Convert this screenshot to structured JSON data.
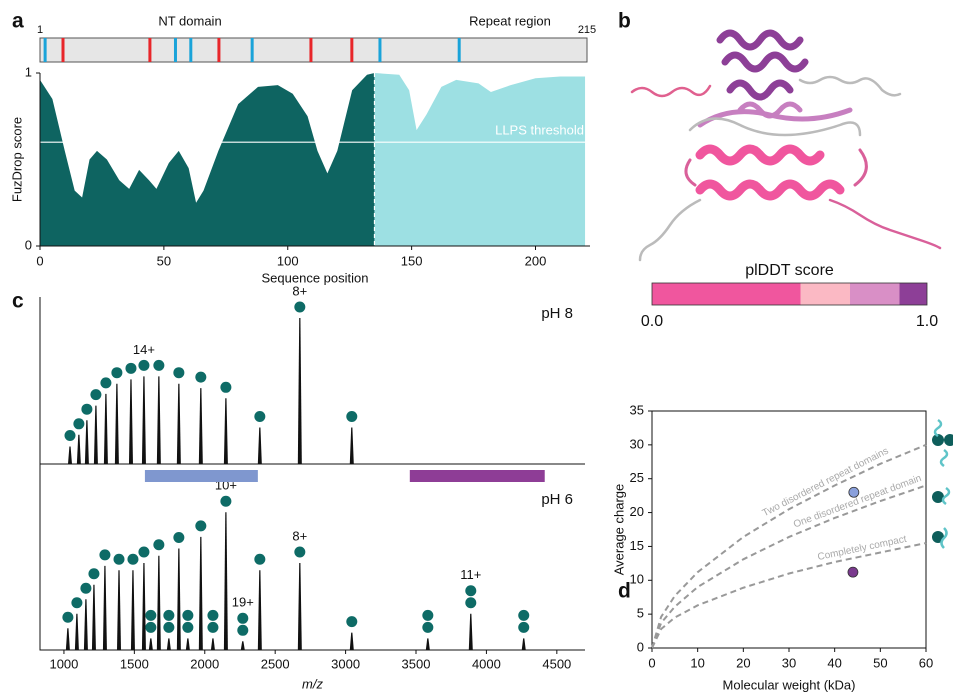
{
  "chart_data": [
    {
      "type": "area",
      "panel_label": "a",
      "domain_bar": {
        "start": 1,
        "end": 215,
        "regions": [
          "NT domain",
          "Repeat region"
        ],
        "sites": [
          {
            "x": 3,
            "color": "#1aa3d9"
          },
          {
            "x": 10,
            "color": "#e8262a"
          },
          {
            "x": 44,
            "color": "#e8262a"
          },
          {
            "x": 54,
            "color": "#1aa3d9"
          },
          {
            "x": 60,
            "color": "#1aa3d9"
          },
          {
            "x": 71,
            "color": "#e8262a"
          },
          {
            "x": 84,
            "color": "#1aa3d9"
          },
          {
            "x": 107,
            "color": "#e8262a"
          },
          {
            "x": 123,
            "color": "#e8262a"
          },
          {
            "x": 134,
            "color": "#1aa3d9"
          },
          {
            "x": 165,
            "color": "#1aa3d9"
          }
        ]
      },
      "xlabel": "Sequence position",
      "ylabel": "FuzDrop score",
      "xlim": [
        0,
        222
      ],
      "ylim": [
        0,
        1
      ],
      "xticks": [
        0,
        50,
        100,
        150,
        200
      ],
      "yticks": [
        0,
        1
      ],
      "series": [
        {
          "color": "#0e6461",
          "x": [
            0,
            5,
            10,
            14,
            17,
            20,
            23,
            27,
            32,
            36,
            40,
            44,
            47,
            52,
            56,
            60,
            63,
            66,
            72,
            80,
            88,
            96,
            102,
            108,
            112,
            116,
            120,
            126,
            132,
            135
          ],
          "values": [
            0.96,
            0.85,
            0.55,
            0.32,
            0.28,
            0.5,
            0.55,
            0.5,
            0.38,
            0.33,
            0.44,
            0.38,
            0.33,
            0.48,
            0.55,
            0.45,
            0.25,
            0.32,
            0.55,
            0.82,
            0.92,
            0.93,
            0.88,
            0.75,
            0.55,
            0.42,
            0.55,
            0.9,
            0.99,
            1.0
          ]
        },
        {
          "color": "#9de0e3",
          "x": [
            135,
            145,
            149,
            152,
            156,
            162,
            168,
            177,
            182,
            190,
            200,
            210,
            220
          ],
          "values": [
            1.0,
            0.99,
            0.9,
            0.67,
            0.76,
            0.92,
            0.96,
            0.94,
            0.89,
            0.93,
            0.97,
            0.98,
            0.98
          ]
        }
      ],
      "threshold": {
        "value": 0.6,
        "label": "LLPS threshold"
      },
      "divider": 135
    },
    {
      "type": "colorbar",
      "panel_label": "b",
      "title": "plDDT score",
      "xlim": [
        0,
        1
      ],
      "xticks": [
        {
          "value": 0,
          "label": "0.0"
        },
        {
          "value": 1,
          "label": "1.0"
        }
      ],
      "segments": [
        {
          "start": 0,
          "end": 0.54,
          "color": "#f0569e"
        },
        {
          "start": 0.54,
          "end": 0.72,
          "color": "#fbb9c4"
        },
        {
          "start": 0.72,
          "end": 0.9,
          "color": "#d98fc6"
        },
        {
          "start": 0.9,
          "end": 1,
          "color": "#8d3f97"
        }
      ]
    },
    {
      "type": "spectrum",
      "panel_label": "c",
      "xlabel": "m/z",
      "xlim": [
        830,
        4700
      ],
      "xticks": [
        1000,
        1500,
        2000,
        2500,
        3000,
        3500,
        4000,
        4500
      ],
      "circle_color": "#0e6b66",
      "spectra": [
        {
          "label": "pH 8",
          "ylim": [
            0,
            100
          ],
          "x": [
            1043,
            1106,
            1163,
            1227,
            1298,
            1376,
            1476,
            1568,
            1674,
            1816,
            1972,
            2150,
            2391,
            2675,
            3044
          ],
          "values": [
            12,
            20,
            30,
            40,
            48,
            55,
            58,
            60,
            60,
            55,
            52,
            45,
            25,
            100,
            25
          ],
          "circles": [
            1,
            1,
            1,
            1,
            1,
            1,
            1,
            1,
            1,
            1,
            1,
            1,
            1,
            1,
            1
          ],
          "annotations": [
            {
              "x": 1568,
              "label": "14+"
            },
            {
              "x": 2675,
              "label": "8+"
            }
          ]
        },
        {
          "label": "pH 6",
          "ylim": [
            0,
            100
          ],
          "x": [
            1028,
            1092,
            1156,
            1213,
            1291,
            1391,
            1490,
            1568,
            1617,
            1674,
            1745,
            1816,
            1880,
            1972,
            2058,
            2150,
            2270,
            2391,
            2675,
            3044,
            3584,
            3889,
            4265
          ],
          "values": [
            15,
            25,
            35,
            45,
            58,
            55,
            55,
            60,
            8,
            65,
            8,
            70,
            8,
            78,
            8,
            95,
            6,
            55,
            60,
            12,
            8,
            25,
            8
          ],
          "circles": [
            1,
            1,
            1,
            1,
            1,
            1,
            1,
            1,
            2,
            1,
            2,
            1,
            2,
            1,
            2,
            1,
            2,
            1,
            1,
            1,
            2,
            2,
            2
          ],
          "annotations": [
            {
              "x": 2150,
              "label": "10+"
            },
            {
              "x": 2270,
              "label": "19+"
            },
            {
              "x": 2675,
              "label": "8+"
            },
            {
              "x": 3889,
              "label": "11+"
            }
          ]
        }
      ],
      "ranges": [
        {
          "x": [
            1575,
            2377
          ],
          "color": "#7f97cf"
        },
        {
          "x": [
            3456,
            4414
          ],
          "color": "#8e3d96"
        }
      ]
    },
    {
      "type": "scatter",
      "panel_label": "d",
      "xlabel": "Molecular weight (kDa)",
      "ylabel": "Average charge",
      "xlim": [
        0,
        60
      ],
      "ylim": [
        0,
        35
      ],
      "xticks": [
        0,
        10,
        20,
        30,
        40,
        50,
        60
      ],
      "yticks": [
        0,
        5,
        10,
        15,
        20,
        25,
        30,
        35
      ],
      "points": {
        "x": [
          44.2,
          44
        ],
        "values": [
          23,
          11.2
        ],
        "colors": [
          "#8aa0dc",
          "#7a3a8e"
        ]
      },
      "curves": [
        {
          "label": "Two disordered repeat domains",
          "x": [
            0,
            2,
            5,
            10,
            20,
            30,
            40,
            50,
            60
          ],
          "values": [
            0,
            4.6,
            7.7,
            11.2,
            16.4,
            20.5,
            24.0,
            27.2,
            30
          ]
        },
        {
          "label": "One disordered repeat domain",
          "x": [
            0,
            2,
            5,
            10,
            20,
            30,
            40,
            50,
            60
          ],
          "values": [
            0,
            3.7,
            6.1,
            9.0,
            13.1,
            16.4,
            19.2,
            21.7,
            24
          ]
        },
        {
          "label": "Completely compact",
          "x": [
            0,
            2,
            5,
            10,
            20,
            30,
            40,
            50,
            60
          ],
          "values": [
            0,
            2.8,
            4.5,
            6.3,
            8.9,
            11.0,
            12.7,
            14.1,
            15.5
          ]
        }
      ]
    }
  ]
}
